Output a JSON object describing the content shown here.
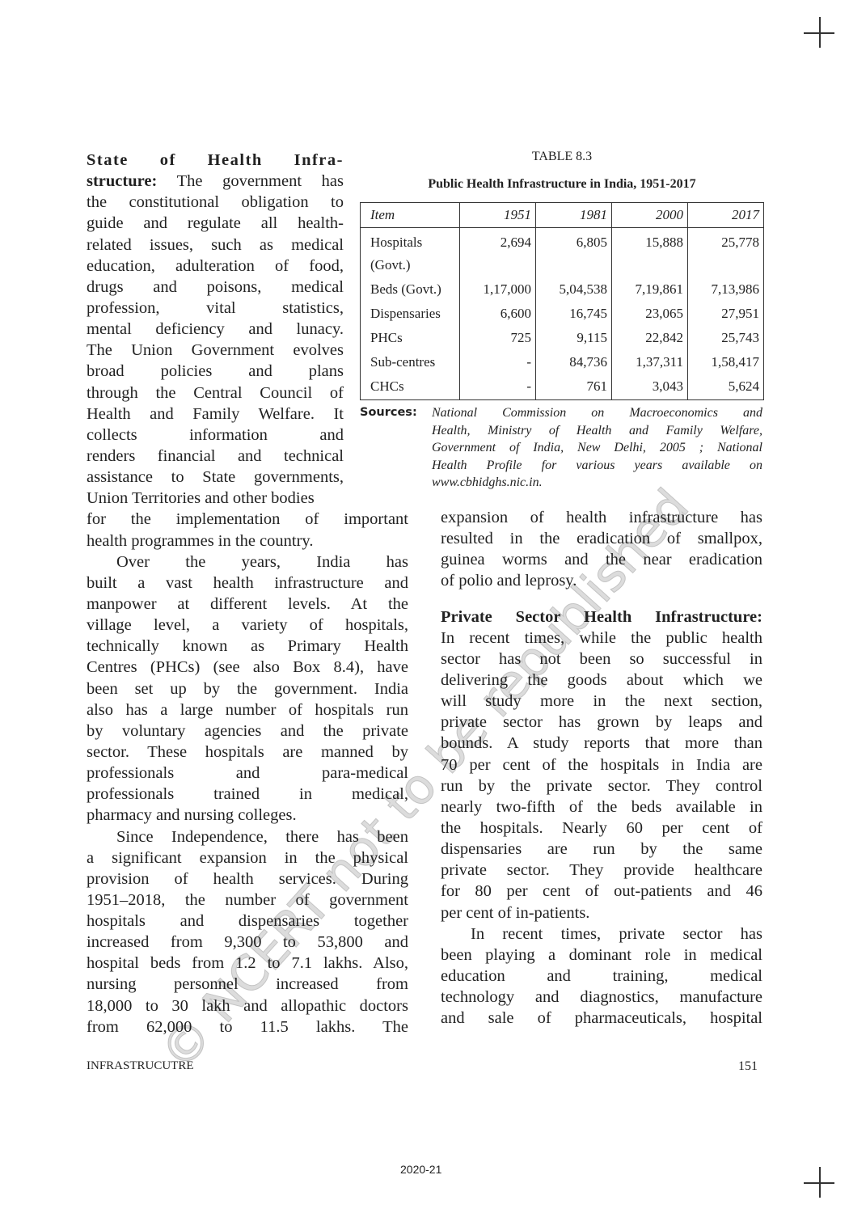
{
  "left_column": [
    {
      "lines": [
        {
          "bold_lead": "State of Health Infra-",
          "text": ""
        },
        {
          "bold_lead": "structure:",
          "text": " The government has"
        },
        "the constitutional obligation to",
        "guide and regulate all health-",
        "related issues, such as medical",
        "education, adulteration of food,",
        "drugs and poisons, medical",
        "profession, vital statistics,",
        "mental deficiency and lunacy.",
        "The Union Government evolves",
        "broad policies and plans",
        "through the Central Council of",
        "Health and Family Welfare. It",
        "collects information and",
        "renders financial and technical",
        "assistance to State governments,",
        "Union Territories and other bodies",
        "for the implementation of important",
        "health programmes in the country."
      ],
      "narrow_until": 17
    },
    {
      "indent": true,
      "lines": [
        "Over the years, India has",
        "built a vast health infrastructure and",
        "manpower at different levels. At the",
        "village level, a variety of hospitals,",
        "technically known as Primary Health",
        "Centres (PHCs) (see also Box 8.4), have",
        "been set up by the government. India",
        "also has a large number of hospitals run",
        "by voluntary agencies and the private",
        "sector. These hospitals are manned by",
        "professionals and para-medical",
        "professionals trained in medical,",
        "pharmacy and nursing colleges."
      ]
    },
    {
      "indent": true,
      "continues": true,
      "lines": [
        "Since Independence, there has been",
        "a significant expansion in the physical",
        "provision of health services. During",
        "1951–2018, the number of government",
        "hospitals and dispensaries together",
        "increased from 9,300 to 53,800 and",
        "hospital beds from 1.2 to 7.1 lakhs. Also,",
        "nursing personnel increased from",
        "18,000 to 30 lakh and allopathic doctors",
        "from 62,000 to 11.5 lakhs. The"
      ]
    }
  ],
  "table": {
    "label": "TABLE 8.3",
    "title": "Public Health Infrastructure in India, 1951-2017",
    "headers": [
      "Item",
      "1951",
      "1981",
      "2000",
      "2017"
    ],
    "rows": [
      [
        "Hospitals (Govt.)",
        "2,694",
        "6,805",
        "15,888",
        "25,778"
      ],
      [
        "Beds (Govt.)",
        "1,17,000",
        "5,04,538",
        "7,19,861",
        "7,13,986"
      ],
      [
        "Dispensaries",
        "6,600",
        "16,745",
        "23,065",
        "27,951"
      ],
      [
        "PHCs",
        "725",
        "9,115",
        "22,842",
        "25,743"
      ],
      [
        "Sub-centres",
        "-",
        "84,736",
        "1,37,311",
        "1,58,417"
      ],
      [
        "CHCs",
        "-",
        "761",
        "3,043",
        "5,624"
      ]
    ],
    "sources_label": "Sources:",
    "sources_lines": [
      "National Commission on Macroeconomics and",
      "Health, Ministry of Health and Family Welfare,",
      "Government of India, New Delhi,  2005 ; National",
      "Health Profile for various years available on",
      "www.cbhidghs.nic.in."
    ]
  },
  "right_column": [
    {
      "lines": [
        "expansion of health infrastructure has",
        "resulted in the eradication of smallpox,",
        "guinea worms and the near eradication",
        "of polio and leprosy."
      ]
    },
    {
      "lines": [
        {
          "bold_lead": "Private Sector Health Infrastructure:",
          "text": ""
        },
        "In recent times, while the public health",
        "sector has not been so successful in",
        "delivering the goods about which we",
        "will study more in the next section,",
        "private sector has grown by leaps and",
        "bounds. A study reports that more than",
        "70 per cent of the hospitals in India are",
        "run by the private sector. They control",
        "nearly two-fifth of the beds available in",
        "the hospitals. Nearly 60 per cent of",
        "dispensaries are run by the same",
        "private sector.  They provide healthcare",
        "for 80 per cent of out-patients and 46",
        "per cent of in-patients."
      ]
    },
    {
      "indent": true,
      "continues": true,
      "lines": [
        "In recent times, private sector has",
        "been playing a dominant role in medical",
        "education and training, medical",
        "technology and diagnostics, manufacture",
        "and sale of pharmaceuticals, hospital"
      ]
    }
  ],
  "footer": {
    "chapter": "INFRASTRUCUTRE",
    "page_number": "151",
    "year": "2020-21"
  },
  "watermark": "© NCERT not to be republished"
}
